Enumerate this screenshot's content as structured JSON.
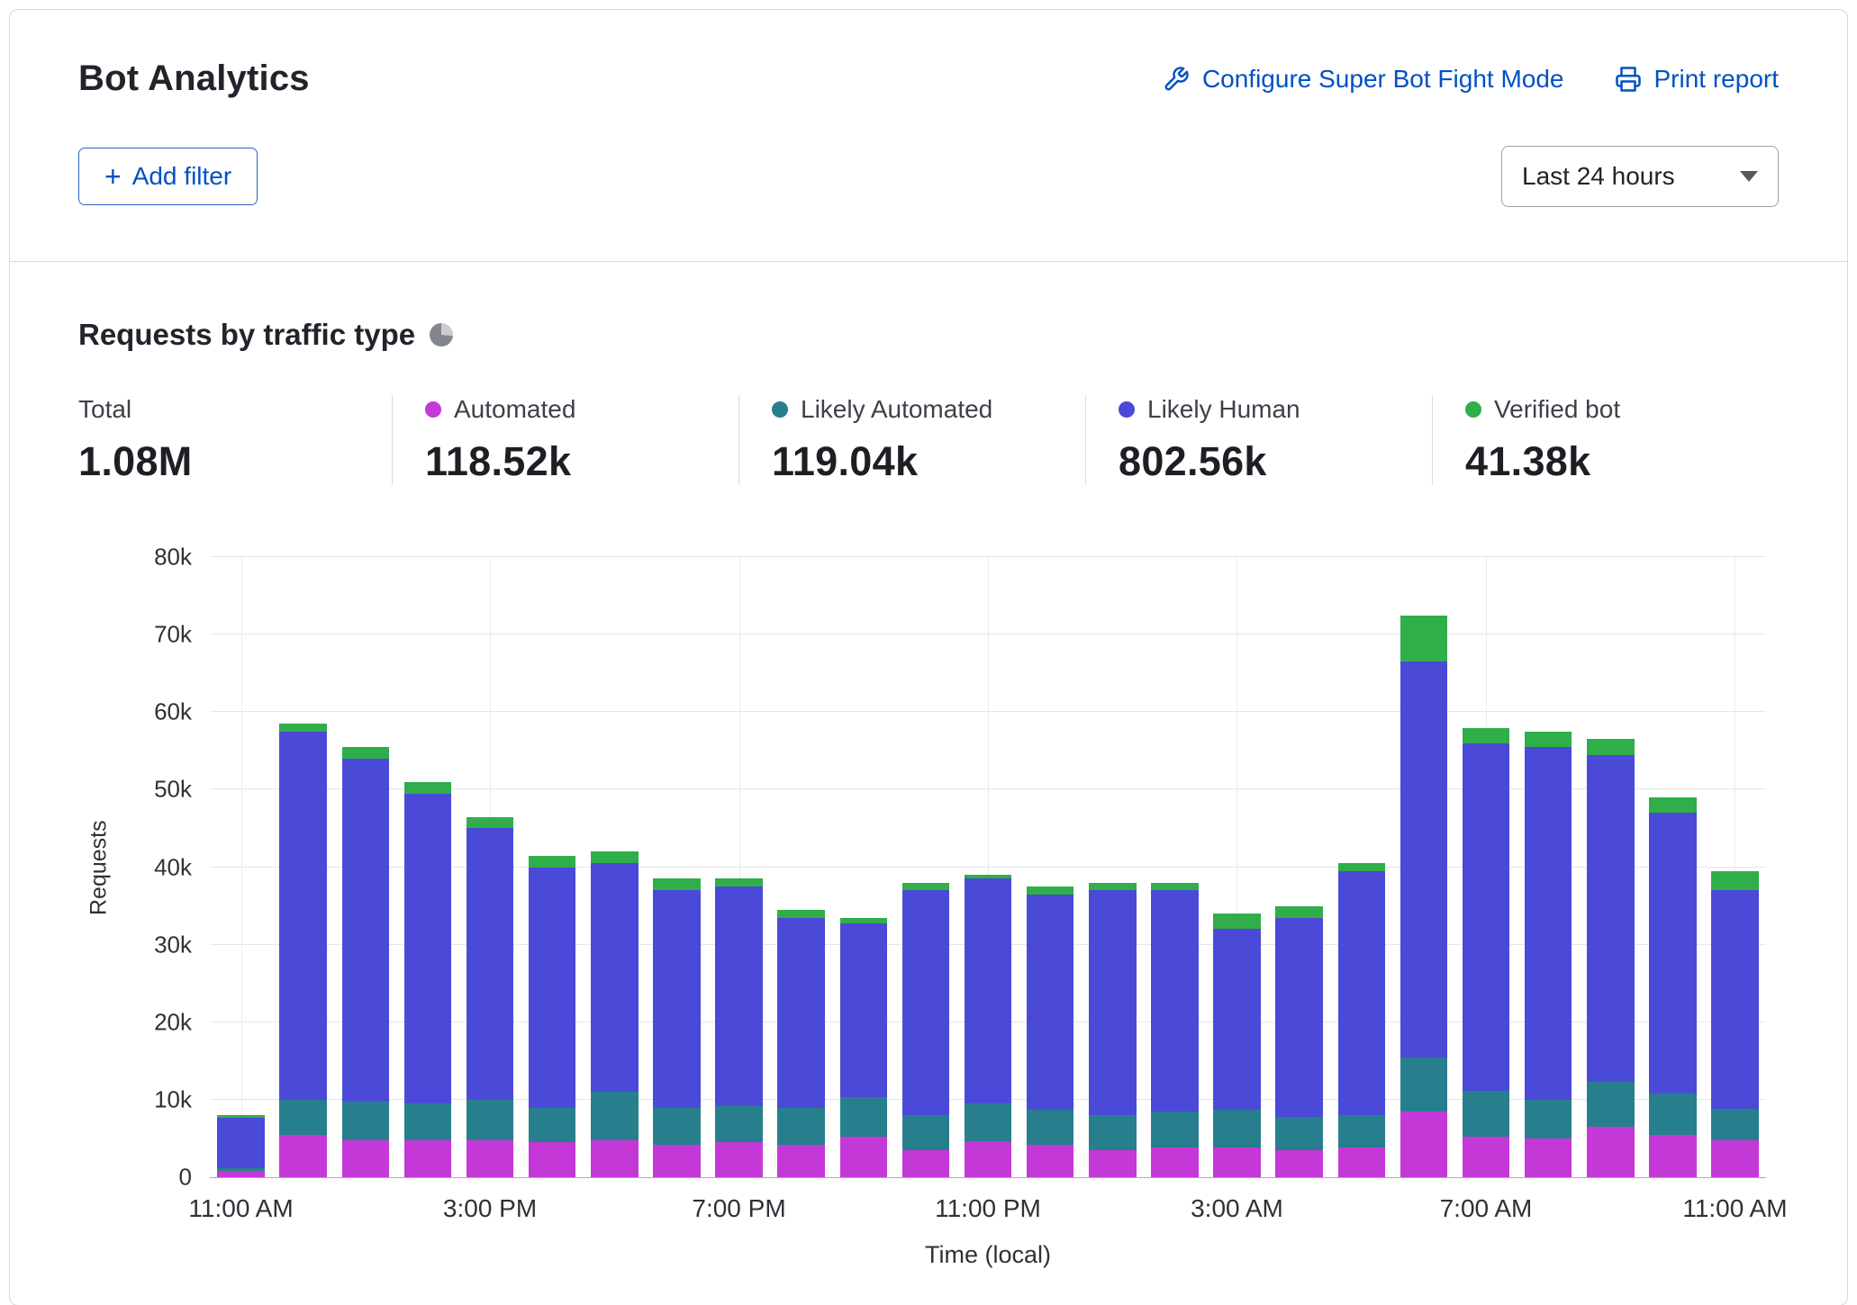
{
  "header": {
    "title": "Bot Analytics",
    "configure_link": "Configure Super Bot Fight Mode",
    "print_link": "Print report",
    "add_filter_label": "Add filter",
    "time_range": "Last 24 hours"
  },
  "section": {
    "title": "Requests by traffic type"
  },
  "colors": {
    "link_blue": "#0051c3",
    "automated": "#c538d8",
    "likely_automated": "#277f8e",
    "likely_human": "#4b49d8",
    "verified_bot": "#2fae4a"
  },
  "stats": [
    {
      "label": "Total",
      "value": "1.08M",
      "color": ""
    },
    {
      "label": "Automated",
      "value": "118.52k",
      "color": "#c538d8"
    },
    {
      "label": "Likely Automated",
      "value": "119.04k",
      "color": "#277f8e"
    },
    {
      "label": "Likely Human",
      "value": "802.56k",
      "color": "#4b49d8"
    },
    {
      "label": "Verified bot",
      "value": "41.38k",
      "color": "#2fae4a"
    }
  ],
  "chart_data": {
    "type": "bar",
    "stacked": true,
    "title": "Requests by traffic type",
    "xlabel": "Time (local)",
    "ylabel": "Requests",
    "ylim": [
      0,
      80000
    ],
    "grid": true,
    "legend_position": "top",
    "y_ticks": [
      "0",
      "10k",
      "20k",
      "30k",
      "40k",
      "50k",
      "60k",
      "70k",
      "80k"
    ],
    "categories": [
      "11:00 AM",
      "",
      "",
      "",
      "3:00 PM",
      "",
      "",
      "",
      "7:00 PM",
      "",
      "",
      "",
      "11:00 PM",
      "",
      "",
      "",
      "3:00 AM",
      "",
      "",
      "",
      "7:00 AM",
      "",
      "",
      "",
      "11:00 AM"
    ],
    "series": [
      {
        "name": "Automated",
        "color": "#c538d8",
        "values": [
          800,
          5500,
          4800,
          4800,
          4800,
          4500,
          4800,
          4200,
          4500,
          4200,
          5200,
          3500,
          4700,
          4200,
          3500,
          3800,
          3800,
          3500,
          3800,
          8500,
          5200,
          5000,
          6500,
          5500,
          4800
        ]
      },
      {
        "name": "Likely Automated",
        "color": "#277f8e",
        "values": [
          400,
          4500,
          5000,
          4700,
          5200,
          4500,
          6200,
          4800,
          4700,
          4800,
          5100,
          4500,
          4800,
          4500,
          4500,
          4700,
          4900,
          4300,
          4200,
          7000,
          6000,
          5000,
          5800,
          5300,
          4000
        ]
      },
      {
        "name": "Likely Human",
        "color": "#4b49d8",
        "values": [
          6500,
          47500,
          44200,
          40000,
          35000,
          31000,
          29500,
          28000,
          28300,
          24500,
          22400,
          29000,
          29000,
          27800,
          29000,
          28500,
          23300,
          25700,
          31500,
          51000,
          44800,
          45500,
          42200,
          36200,
          28200
        ]
      },
      {
        "name": "Verified bot",
        "color": "#2fae4a",
        "values": [
          300,
          1000,
          1500,
          1500,
          1500,
          1500,
          1500,
          1500,
          1000,
          1000,
          800,
          1000,
          500,
          1000,
          1000,
          1000,
          2000,
          1500,
          1000,
          6000,
          2000,
          2000,
          2000,
          2000,
          2500
        ]
      }
    ]
  }
}
